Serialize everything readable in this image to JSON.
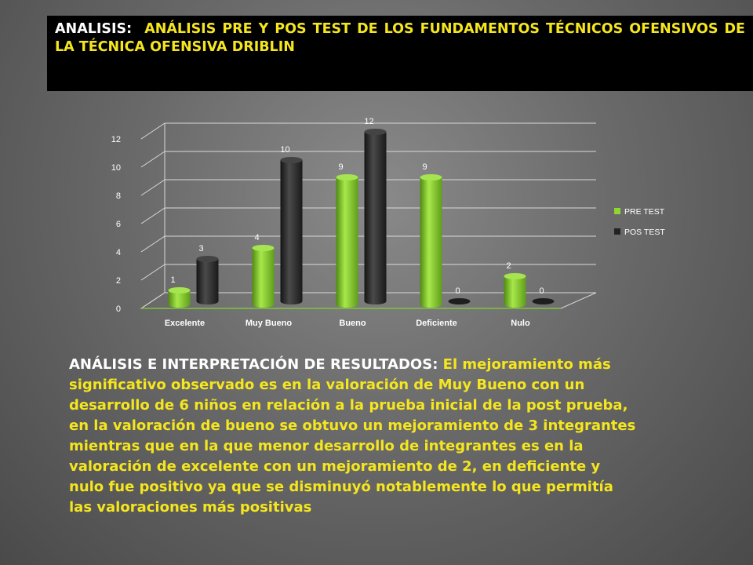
{
  "header": {
    "label": "ANALISIS:",
    "title": "ANÁLISIS PRE Y POS TEST DE LOS FUNDAMENTOS TÉCNICOS OFENSIVOS  DE LA TÉCNICA OFENSIVA DRIBLIN"
  },
  "analysis": {
    "label": "ANÁLISIS E INTERPRETACIÓN DE RESULTADOS:",
    "body": "El mejoramiento más significativo observado es en la valoración de Muy Bueno con un  desarrollo de 6 niños en relación a la prueba inicial de la post prueba, en la valoración de bueno se obtuvo un mejoramiento de 3 integrantes mientras que en la que menor desarrollo de integrantes es en la valoración de excelente con un mejoramiento de 2, en deficiente y nulo fue positivo ya que se disminuyó notablemente lo que permitía las valoraciones más positivas"
  },
  "colors": {
    "pre": "#8fd62f",
    "pos": "#2a2a2a",
    "header_bg": "#000000",
    "title_yellow": "#f5e61e"
  },
  "chart_data": {
    "type": "bar",
    "categories": [
      "Excelente",
      "Muy Bueno",
      "Bueno",
      "Deficiente",
      "Nulo"
    ],
    "series": [
      {
        "name": "PRE TEST",
        "values": [
          1,
          4,
          9,
          9,
          2
        ]
      },
      {
        "name": "POS TEST",
        "values": [
          3,
          10,
          12,
          0,
          0
        ]
      }
    ],
    "ylim": [
      0,
      12
    ],
    "yticks": [
      "0",
      "2",
      "4",
      "6",
      "8",
      "10",
      "12"
    ],
    "grid": true,
    "legend": "right",
    "data_labels": true
  }
}
